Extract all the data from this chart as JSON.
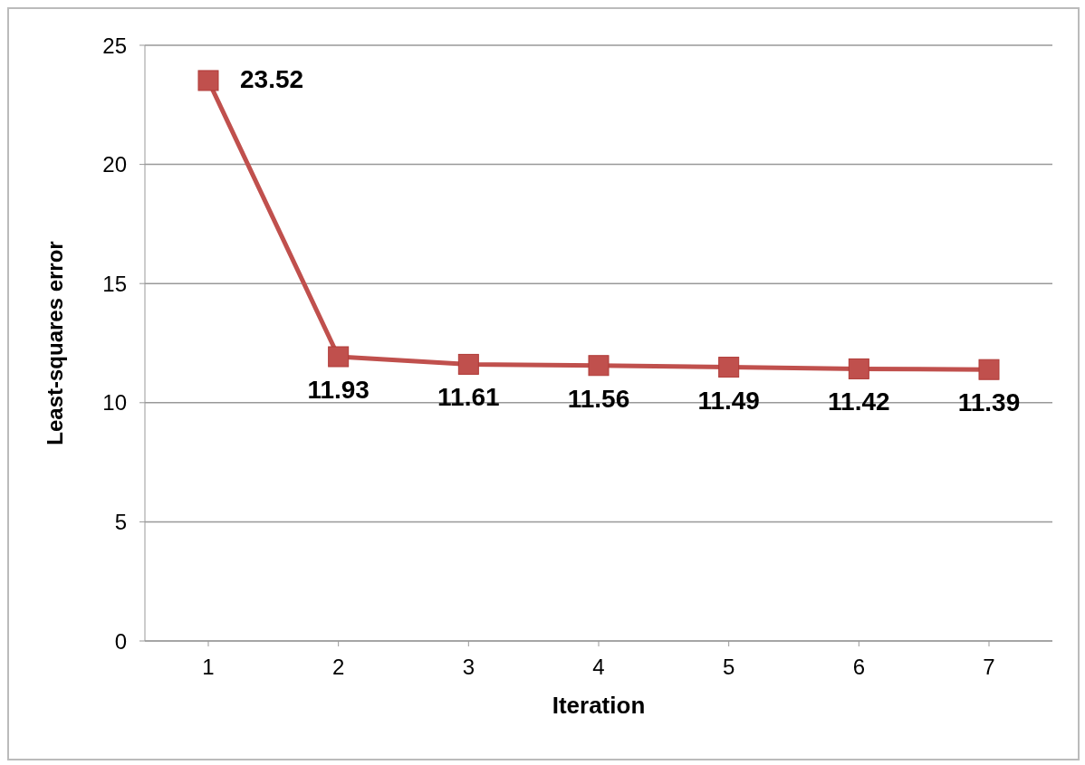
{
  "chart_data": {
    "type": "line",
    "xlabel": "Iteration",
    "ylabel": "Least-squares error",
    "categories": [
      "1",
      "2",
      "3",
      "4",
      "5",
      "6",
      "7"
    ],
    "series": [
      {
        "color": "#c0504d",
        "values": [
          23.52,
          11.93,
          11.61,
          11.56,
          11.49,
          11.42,
          11.39
        ]
      }
    ],
    "ylim": [
      0,
      25
    ],
    "yticks": [
      0,
      5,
      10,
      15,
      20,
      25
    ],
    "grid": "y",
    "marker": "square",
    "line_style": "solid",
    "data_labels": true
  }
}
